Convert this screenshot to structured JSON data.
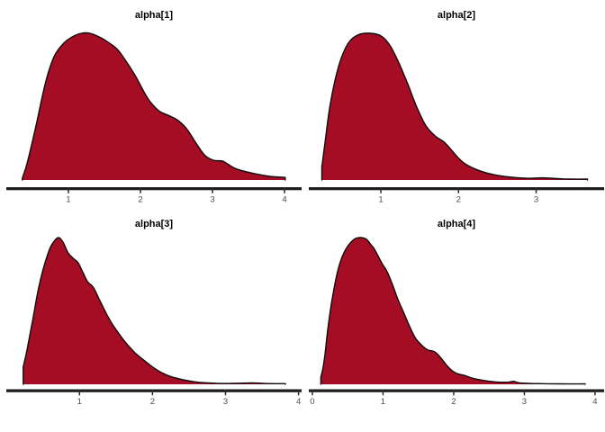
{
  "chart_data": {
    "type": "area",
    "subtype": "kernel-density",
    "title": "",
    "legend": false,
    "grid": false,
    "layout": "2x2 grid of panels, free x scales, no y axis shown",
    "colors": {
      "fill": "#A40D23",
      "outline": "#0D0D0D",
      "axis_line": "#1F1F1F",
      "tick_mark": "#2B2B2B",
      "tick_label": "#4D4D4D",
      "panel_title": "#000000",
      "background": "#FFFFFF"
    },
    "y_axis": {
      "shown": false,
      "note": "density heights normalized per panel, 0 to 1 of panel peak"
    },
    "panels": [
      {
        "title": "alpha[1]",
        "x_domain": [
          0.175,
          4.2
        ],
        "x_ticks": [
          1,
          2,
          3,
          4
        ],
        "density": [
          [
            0.36,
            0.012
          ],
          [
            0.43,
            0.12
          ],
          [
            0.55,
            0.37
          ],
          [
            0.68,
            0.66
          ],
          [
            0.8,
            0.84
          ],
          [
            0.93,
            0.93
          ],
          [
            1.05,
            0.975
          ],
          [
            1.18,
            1.0
          ],
          [
            1.3,
            1.0
          ],
          [
            1.43,
            0.975
          ],
          [
            1.55,
            0.94
          ],
          [
            1.68,
            0.89
          ],
          [
            1.8,
            0.81
          ],
          [
            1.93,
            0.71
          ],
          [
            2.05,
            0.6
          ],
          [
            2.14,
            0.53
          ],
          [
            2.26,
            0.47
          ],
          [
            2.39,
            0.44
          ],
          [
            2.51,
            0.41
          ],
          [
            2.64,
            0.35
          ],
          [
            2.76,
            0.26
          ],
          [
            2.89,
            0.17
          ],
          [
            3.01,
            0.135
          ],
          [
            3.14,
            0.128
          ],
          [
            3.24,
            0.1
          ],
          [
            3.34,
            0.074
          ],
          [
            3.59,
            0.043
          ],
          [
            3.8,
            0.025
          ],
          [
            4.01,
            0.018
          ]
        ]
      },
      {
        "title": "alpha[2]",
        "x_domain": [
          0.107,
          3.84
        ],
        "x_ticks": [
          1,
          2,
          3
        ],
        "density": [
          [
            0.24,
            0.09
          ],
          [
            0.28,
            0.25
          ],
          [
            0.34,
            0.49
          ],
          [
            0.41,
            0.68
          ],
          [
            0.49,
            0.83
          ],
          [
            0.59,
            0.94
          ],
          [
            0.71,
            0.99
          ],
          [
            0.87,
            1.0
          ],
          [
            1.01,
            0.98
          ],
          [
            1.12,
            0.915
          ],
          [
            1.23,
            0.8
          ],
          [
            1.35,
            0.65
          ],
          [
            1.46,
            0.5
          ],
          [
            1.58,
            0.37
          ],
          [
            1.7,
            0.3
          ],
          [
            1.81,
            0.26
          ],
          [
            1.9,
            0.21
          ],
          [
            1.99,
            0.155
          ],
          [
            2.1,
            0.105
          ],
          [
            2.28,
            0.062
          ],
          [
            2.51,
            0.031
          ],
          [
            2.86,
            0.012
          ],
          [
            3.09,
            0.015
          ],
          [
            3.36,
            0.007
          ],
          [
            3.66,
            0.006
          ]
        ]
      },
      {
        "title": "alpha[3]",
        "x_domain": [
          0.035,
          4.005
        ],
        "x_ticks": [
          1,
          2,
          3,
          4
        ],
        "density": [
          [
            0.23,
            0.12
          ],
          [
            0.28,
            0.23
          ],
          [
            0.36,
            0.44
          ],
          [
            0.43,
            0.63
          ],
          [
            0.5,
            0.78
          ],
          [
            0.59,
            0.92
          ],
          [
            0.66,
            0.98
          ],
          [
            0.72,
            1.0
          ],
          [
            0.78,
            0.965
          ],
          [
            0.84,
            0.9
          ],
          [
            0.91,
            0.86
          ],
          [
            0.98,
            0.83
          ],
          [
            1.04,
            0.77
          ],
          [
            1.11,
            0.7
          ],
          [
            1.19,
            0.66
          ],
          [
            1.28,
            0.57
          ],
          [
            1.37,
            0.48
          ],
          [
            1.45,
            0.41
          ],
          [
            1.54,
            0.345
          ],
          [
            1.64,
            0.28
          ],
          [
            1.76,
            0.215
          ],
          [
            1.88,
            0.165
          ],
          [
            2.01,
            0.115
          ],
          [
            2.13,
            0.078
          ],
          [
            2.25,
            0.053
          ],
          [
            2.44,
            0.029
          ],
          [
            2.62,
            0.014
          ],
          [
            2.87,
            0.007
          ],
          [
            3.1,
            0.006
          ],
          [
            3.36,
            0.009
          ],
          [
            3.6,
            0.005
          ],
          [
            3.82,
            0.004
          ]
        ]
      },
      {
        "title": "alpha[4]",
        "x_domain": [
          -0.012,
          4.09
        ],
        "x_ticks": [
          0,
          1,
          2,
          3,
          4
        ],
        "density": [
          [
            0.12,
            0.05
          ],
          [
            0.15,
            0.11
          ],
          [
            0.18,
            0.21
          ],
          [
            0.22,
            0.38
          ],
          [
            0.28,
            0.58
          ],
          [
            0.36,
            0.775
          ],
          [
            0.45,
            0.9
          ],
          [
            0.57,
            0.98
          ],
          [
            0.66,
            1.0
          ],
          [
            0.76,
            0.99
          ],
          [
            0.84,
            0.945
          ],
          [
            0.88,
            0.92
          ],
          [
            0.99,
            0.82
          ],
          [
            1.05,
            0.775
          ],
          [
            1.13,
            0.685
          ],
          [
            1.21,
            0.58
          ],
          [
            1.3,
            0.48
          ],
          [
            1.38,
            0.39
          ],
          [
            1.46,
            0.315
          ],
          [
            1.55,
            0.265
          ],
          [
            1.63,
            0.235
          ],
          [
            1.73,
            0.222
          ],
          [
            1.81,
            0.185
          ],
          [
            1.9,
            0.13
          ],
          [
            1.98,
            0.092
          ],
          [
            2.06,
            0.071
          ],
          [
            2.15,
            0.061
          ],
          [
            2.27,
            0.041
          ],
          [
            2.44,
            0.025
          ],
          [
            2.6,
            0.016
          ],
          [
            2.77,
            0.015
          ],
          [
            2.85,
            0.02
          ],
          [
            2.93,
            0.01
          ],
          [
            3.18,
            0.005
          ],
          [
            3.51,
            0.003
          ],
          [
            3.86,
            0.003
          ]
        ]
      }
    ]
  }
}
